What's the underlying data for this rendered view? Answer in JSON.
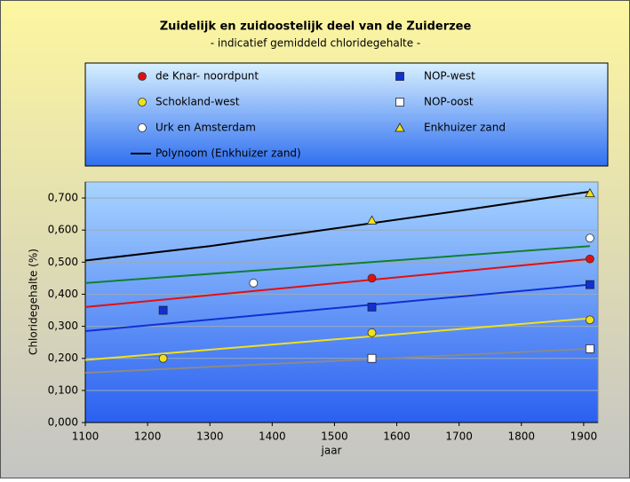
{
  "chart_data": {
    "type": "scatter",
    "title": "Zuidelijk en zuidoostelijk deel van de Zuiderzee",
    "subtitle": "- indicatief gemiddeld chloridegehalte -",
    "x_label": "jaar",
    "y_label": "Chloridegehalte (%)",
    "xlim": [
      1100,
      1923
    ],
    "xticks": [
      1100,
      1200,
      1300,
      1400,
      1500,
      1600,
      1700,
      1800,
      1900
    ],
    "ylim": [
      0,
      0.75
    ],
    "yticks": [
      {
        "value": 0,
        "label": "0,000"
      },
      {
        "value": 0.1,
        "label": "0,100"
      },
      {
        "value": 0.2,
        "label": "0,200"
      },
      {
        "value": 0.3,
        "label": "0,300"
      },
      {
        "value": 0.4,
        "label": "0,400"
      },
      {
        "value": 0.5,
        "label": "0,500"
      },
      {
        "value": 0.6,
        "label": "0,600"
      },
      {
        "value": 0.7,
        "label": "0,700"
      }
    ],
    "grid": true,
    "series": [
      {
        "name": "de Knar- noordpunt",
        "color": "#e01010",
        "mode": "markers",
        "marker": "circle",
        "x": [
          1560,
          1910
        ],
        "values": [
          0.45,
          0.51
        ]
      },
      {
        "name": "NOP-west",
        "color": "#1030d0",
        "mode": "markers",
        "marker": "square",
        "x": [
          1225,
          1560,
          1910
        ],
        "values": [
          0.35,
          0.36,
          0.43
        ]
      },
      {
        "name": "Schokland-west",
        "color": "#f0e020",
        "mode": "markers",
        "marker": "circle",
        "x": [
          1225,
          1560,
          1910
        ],
        "values": [
          0.2,
          0.28,
          0.32
        ]
      },
      {
        "name": "NOP-oost",
        "color": "#ffffff",
        "mode": "markers",
        "marker": "square",
        "x": [
          1560,
          1910
        ],
        "values": [
          0.2,
          0.23
        ]
      },
      {
        "name": "Urk en Amsterdam",
        "color": "#ffffff",
        "mode": "markers",
        "marker": "circle",
        "x": [
          1370,
          1910
        ],
        "values": [
          0.435,
          0.575
        ]
      },
      {
        "name": "Enkhuizer zand",
        "color": "#f0e020",
        "mode": "markers",
        "marker": "triangle",
        "x": [
          1560,
          1910
        ],
        "values": [
          0.63,
          0.715
        ]
      },
      {
        "name": "Polynoom (Enkhuizer zand)",
        "color": "#000000",
        "mode": "line",
        "x": [
          1100,
          1300,
          1500,
          1700,
          1910
        ],
        "values": [
          0.505,
          0.55,
          0.605,
          0.66,
          0.72
        ]
      },
      {
        "color": "#108030",
        "mode": "line",
        "x": [
          1100,
          1910
        ],
        "values": [
          0.435,
          0.55
        ]
      },
      {
        "color": "#e01010",
        "mode": "line",
        "x": [
          1100,
          1910
        ],
        "values": [
          0.36,
          0.51
        ]
      },
      {
        "color": "#1030d0",
        "mode": "line",
        "x": [
          1100,
          1910
        ],
        "values": [
          0.285,
          0.43
        ]
      },
      {
        "color": "#f0e020",
        "mode": "line",
        "x": [
          1100,
          1910
        ],
        "values": [
          0.195,
          0.325
        ]
      },
      {
        "color": "#8a8a8a",
        "mode": "line",
        "x": [
          1100,
          1910
        ],
        "values": [
          0.155,
          0.23
        ]
      }
    ]
  }
}
